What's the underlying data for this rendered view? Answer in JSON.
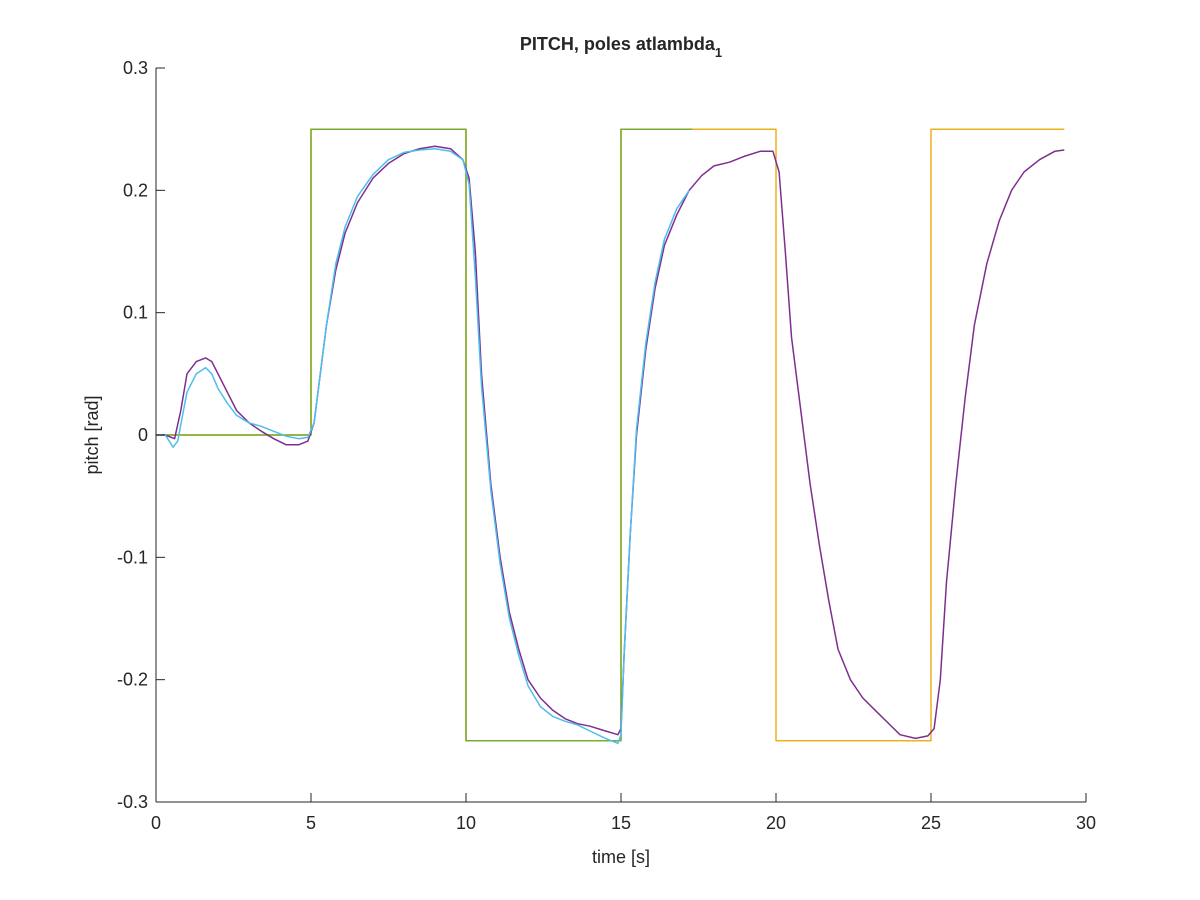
{
  "chart_data": {
    "type": "line",
    "title": "PITCH, poles atlambda",
    "title_subscript": "1",
    "xlabel": "time [s]",
    "ylabel": "pitch [rad]",
    "xlim": [
      0,
      30
    ],
    "ylim": [
      -0.3,
      0.3
    ],
    "xticks": [
      0,
      5,
      10,
      15,
      20,
      25,
      30
    ],
    "xtick_labels": [
      "0",
      "5",
      "10",
      "15",
      "20",
      "25",
      "30"
    ],
    "yticks": [
      -0.3,
      -0.2,
      -0.1,
      0,
      0.1,
      0.2,
      0.3
    ],
    "ytick_labels": [
      "-0.3",
      "-0.2",
      "-0.1",
      "0",
      "0.1",
      "0.2",
      "0.3"
    ],
    "grid": false,
    "legend": "none",
    "series": [
      {
        "color": "#EDB120",
        "x": [
          0,
          5,
          5,
          10,
          10,
          15,
          15,
          20,
          20,
          25,
          25,
          29.3
        ],
        "y": [
          0,
          0,
          0.25,
          0.25,
          -0.25,
          -0.25,
          0.25,
          0.25,
          -0.25,
          -0.25,
          0.25,
          0.25
        ]
      },
      {
        "color": "#77AC30",
        "x": [
          0,
          5,
          5,
          10,
          10,
          15,
          15,
          17.3
        ],
        "y": [
          0,
          0,
          0.25,
          0.25,
          -0.25,
          -0.25,
          0.25,
          0.25
        ]
      },
      {
        "color": "#7E2F8E",
        "x": [
          0,
          0.3,
          0.6,
          0.8,
          1.0,
          1.3,
          1.6,
          1.8,
          2.0,
          2.3,
          2.6,
          3.0,
          3.4,
          3.8,
          4.2,
          4.6,
          4.9,
          5.1,
          5.3,
          5.5,
          5.8,
          6.1,
          6.5,
          7.0,
          7.5,
          8.0,
          8.5,
          9.0,
          9.5,
          9.9,
          10.1,
          10.3,
          10.5,
          10.8,
          11.1,
          11.4,
          11.7,
          12.0,
          12.4,
          12.8,
          13.2,
          13.6,
          14.0,
          14.5,
          14.9,
          15.0,
          15.1,
          15.3,
          15.5,
          15.8,
          16.1,
          16.4,
          16.8,
          17.2,
          17.6,
          18.0,
          18.5,
          19.0,
          19.5,
          19.9,
          20.1,
          20.3,
          20.5,
          20.8,
          21.1,
          21.4,
          21.7,
          22.0,
          22.4,
          22.8,
          23.2,
          23.6,
          24.0,
          24.5,
          24.9,
          25.1,
          25.3,
          25.5,
          25.8,
          26.1,
          26.4,
          26.8,
          27.2,
          27.6,
          28.0,
          28.5,
          29.0,
          29.3
        ],
        "y": [
          0,
          0,
          -0.003,
          0.02,
          0.05,
          0.06,
          0.063,
          0.06,
          0.05,
          0.035,
          0.02,
          0.01,
          0.003,
          -0.003,
          -0.008,
          -0.008,
          -0.005,
          0.01,
          0.05,
          0.09,
          0.135,
          0.165,
          0.19,
          0.21,
          0.222,
          0.23,
          0.234,
          0.236,
          0.234,
          0.225,
          0.21,
          0.15,
          0.05,
          -0.04,
          -0.1,
          -0.145,
          -0.175,
          -0.2,
          -0.215,
          -0.225,
          -0.232,
          -0.236,
          -0.238,
          -0.242,
          -0.245,
          -0.24,
          -0.18,
          -0.08,
          0.0,
          0.07,
          0.12,
          0.155,
          0.18,
          0.2,
          0.212,
          0.22,
          0.223,
          0.228,
          0.232,
          0.232,
          0.215,
          0.15,
          0.08,
          0.02,
          -0.04,
          -0.09,
          -0.135,
          -0.175,
          -0.2,
          -0.215,
          -0.225,
          -0.235,
          -0.245,
          -0.248,
          -0.246,
          -0.24,
          -0.2,
          -0.12,
          -0.04,
          0.03,
          0.09,
          0.14,
          0.175,
          0.2,
          0.215,
          0.225,
          0.232,
          0.233
        ]
      },
      {
        "color": "#4DBEEE",
        "x": [
          0,
          0.3,
          0.55,
          0.7,
          0.85,
          1.0,
          1.3,
          1.6,
          1.8,
          2.0,
          2.3,
          2.6,
          3.0,
          3.4,
          3.8,
          4.2,
          4.6,
          4.9,
          5.1,
          5.3,
          5.5,
          5.8,
          6.1,
          6.5,
          7.0,
          7.5,
          8.0,
          8.5,
          9.0,
          9.5,
          9.9,
          10.1,
          10.3,
          10.5,
          10.8,
          11.1,
          11.4,
          11.7,
          12.0,
          12.4,
          12.8,
          13.2,
          13.6,
          14.0,
          14.5,
          14.9,
          15.0,
          15.1,
          15.3,
          15.5,
          15.8,
          16.1,
          16.4,
          16.8,
          17.2
        ],
        "y": [
          0,
          0,
          -0.01,
          -0.005,
          0.015,
          0.035,
          0.05,
          0.055,
          0.05,
          0.038,
          0.026,
          0.016,
          0.01,
          0.007,
          0.003,
          -0.001,
          -0.003,
          -0.002,
          0.01,
          0.05,
          0.09,
          0.14,
          0.17,
          0.195,
          0.213,
          0.225,
          0.231,
          0.233,
          0.234,
          0.232,
          0.225,
          0.205,
          0.13,
          0.04,
          -0.045,
          -0.105,
          -0.15,
          -0.18,
          -0.205,
          -0.222,
          -0.23,
          -0.234,
          -0.237,
          -0.242,
          -0.248,
          -0.252,
          -0.245,
          -0.18,
          -0.08,
          0.005,
          0.075,
          0.125,
          0.16,
          0.185,
          0.2
        ]
      }
    ]
  }
}
